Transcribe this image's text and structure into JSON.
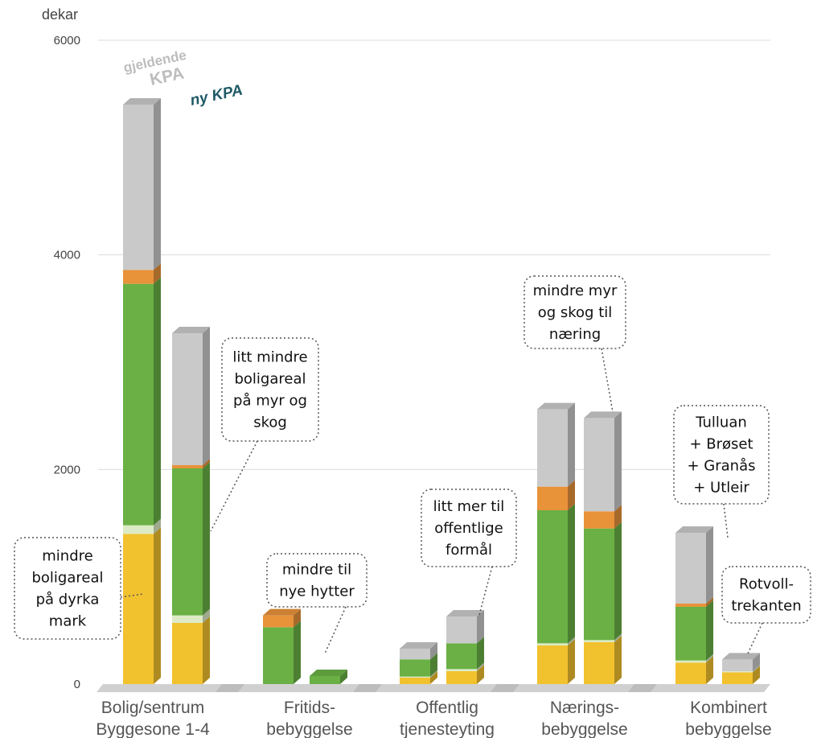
{
  "chart_data": {
    "type": "bar",
    "stacked": true,
    "unit_label": "dekar",
    "y_ticks": [
      "0",
      "2000",
      "4000",
      "6000"
    ],
    "ylim": [
      0,
      6000
    ],
    "grid": true,
    "legend": [
      "gjeldende",
      "KPA",
      "ny KPA"
    ],
    "colors": {
      "dyrka_mark": "#f2c12e",
      "light_green": "#dcebc6",
      "green": "#6ab045",
      "orange": "#e8923a",
      "grey": "#c9c9c9",
      "floor": "#d0d0d0"
    },
    "categories": [
      {
        "line1": "Bolig/sentrum",
        "line2": "Byggesone 1-4"
      },
      {
        "line1": "Fritids-",
        "line2": "bebyggelse"
      },
      {
        "line1": "Offentlig",
        "line2": "tjenesteyting"
      },
      {
        "line1": "Nærings-",
        "line2": "bebyggelse"
      },
      {
        "line1": "Kombinert",
        "line2": "bebyggelse"
      }
    ],
    "bars": [
      {
        "category": 0,
        "variant": "gjeldende KPA",
        "segments": {
          "yellow": 1400,
          "light_green": 80,
          "green": 2250,
          "orange": 130,
          "grey": 1540
        }
      },
      {
        "category": 0,
        "variant": "ny KPA",
        "segments": {
          "yellow": 570,
          "light_green": 70,
          "green": 1370,
          "orange": 30,
          "grey": 1230
        }
      },
      {
        "category": 1,
        "variant": "gjeldende KPA",
        "segments": {
          "yellow": 0,
          "light_green": 0,
          "green": 530,
          "orange": 110,
          "grey": 0
        }
      },
      {
        "category": 1,
        "variant": "ny KPA",
        "segments": {
          "yellow": 0,
          "light_green": 0,
          "green": 75,
          "orange": 0,
          "grey": 0
        }
      },
      {
        "category": 2,
        "variant": "gjeldende KPA",
        "segments": {
          "yellow": 60,
          "light_green": 10,
          "green": 160,
          "orange": 0,
          "grey": 100
        }
      },
      {
        "category": 2,
        "variant": "ny KPA",
        "segments": {
          "yellow": 120,
          "light_green": 20,
          "green": 240,
          "orange": 0,
          "grey": 250
        }
      },
      {
        "category": 3,
        "variant": "gjeldende KPA",
        "segments": {
          "yellow": 360,
          "light_green": 20,
          "green": 1240,
          "orange": 220,
          "grey": 720
        }
      },
      {
        "category": 3,
        "variant": "ny KPA",
        "segments": {
          "yellow": 390,
          "light_green": 20,
          "green": 1040,
          "orange": 160,
          "grey": 870
        }
      },
      {
        "category": 4,
        "variant": "gjeldende KPA",
        "segments": {
          "yellow": 200,
          "light_green": 20,
          "green": 500,
          "orange": 30,
          "grey": 660
        }
      },
      {
        "category": 4,
        "variant": "ny KPA",
        "segments": {
          "yellow": 110,
          "light_green": 10,
          "green": 0,
          "orange": 0,
          "grey": 110
        }
      }
    ],
    "annotations": [
      {
        "lines": [
          "mindre",
          "boligareal",
          "på dyrka",
          "mark"
        ]
      },
      {
        "lines": [
          "litt mindre",
          "boligareal",
          "på myr og",
          "skog"
        ]
      },
      {
        "lines": [
          "mindre til",
          "nye hytter"
        ]
      },
      {
        "lines": [
          "litt mer til",
          "offentlige",
          "formål"
        ]
      },
      {
        "lines": [
          "mindre myr",
          "og skog til",
          "næring"
        ]
      },
      {
        "lines": [
          "Tulluan",
          "+ Brøset",
          "+ Granås",
          "+ Utleir"
        ]
      },
      {
        "lines": [
          "Rotvoll-",
          "trekanten"
        ]
      }
    ]
  }
}
